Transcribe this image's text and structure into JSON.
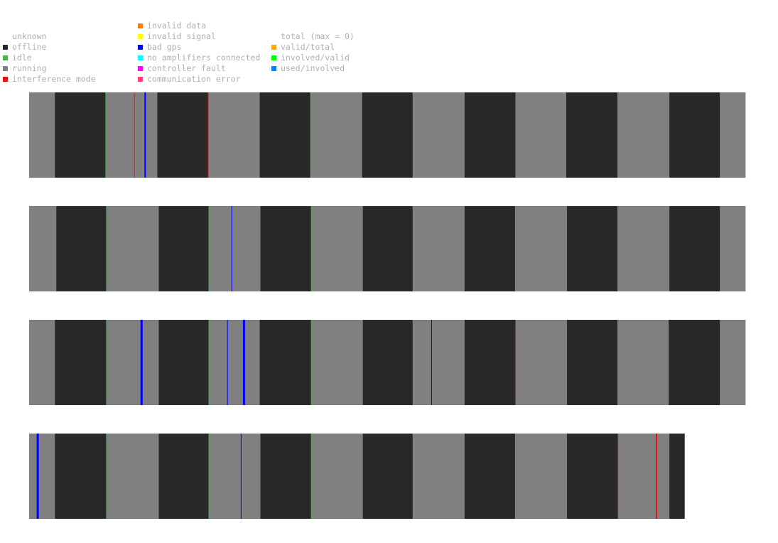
{
  "colors": {
    "unknown": "#ffffff",
    "offline": "#282828",
    "idle": "#4caf50",
    "running": "#808080",
    "interference_mode": "#e81010",
    "invalid_data": "#ff7f00",
    "invalid_signal": "#ffff00",
    "bad_gps": "#0000ff",
    "no_amplifiers_connected": "#00ffff",
    "controller_fault": "#ff00ff",
    "communication_error": "#ff4080",
    "valid_total": "#ffaa00",
    "involved_valid": "#00ff00",
    "used_involved": "#0080ff",
    "legend_text": "#b0b0b0"
  },
  "legend": {
    "col1": [
      {
        "key": "unknown",
        "label": "unknown",
        "swatch": false
      },
      {
        "key": "offline",
        "label": "offline",
        "swatch": true
      },
      {
        "key": "idle",
        "label": "idle",
        "swatch": true
      },
      {
        "key": "running",
        "label": "running",
        "swatch": true
      },
      {
        "key": "interference_mode",
        "label": "interference mode",
        "swatch": true
      }
    ],
    "col2": [
      {
        "key": "invalid_data",
        "label": "invalid data",
        "swatch": true
      },
      {
        "key": "invalid_signal",
        "label": "invalid signal",
        "swatch": true
      },
      {
        "key": "bad_gps",
        "label": "bad gps",
        "swatch": true
      },
      {
        "key": "no_amplifiers_connected",
        "label": "no amplifiers connected",
        "swatch": true
      },
      {
        "key": "controller_fault",
        "label": "controller fault",
        "swatch": true
      },
      {
        "key": "communication_error",
        "label": "communication error",
        "swatch": true
      }
    ],
    "col3": [
      {
        "key": "total",
        "label": "total (max = 0)",
        "swatch": false
      },
      {
        "key": "valid_total",
        "label": "valid/total",
        "swatch": true
      },
      {
        "key": "involved_valid",
        "label": "involved/valid",
        "swatch": true
      },
      {
        "key": "used_involved",
        "label": "used/involved",
        "swatch": true
      }
    ]
  },
  "chart_data": {
    "type": "timeline",
    "x_range": [
      0,
      1000
    ],
    "rows": [
      {
        "segments": [
          [
            0,
            36,
            "running"
          ],
          [
            36,
            107,
            "offline"
          ],
          [
            107,
            179,
            "running"
          ],
          [
            179,
            250,
            "offline"
          ],
          [
            250,
            322,
            "running"
          ],
          [
            322,
            393,
            "offline"
          ],
          [
            393,
            465,
            "running"
          ],
          [
            465,
            536,
            "offline"
          ],
          [
            536,
            608,
            "running"
          ],
          [
            608,
            679,
            "offline"
          ],
          [
            679,
            750,
            "running"
          ],
          [
            750,
            822,
            "offline"
          ],
          [
            822,
            894,
            "running"
          ],
          [
            894,
            965,
            "offline"
          ],
          [
            965,
            1000,
            "running"
          ]
        ],
        "idle_marks": [
          107,
          393,
          536,
          822,
          965
        ],
        "events": [
          [
            147,
            "interference_mode",
            1
          ],
          [
            162,
            "bad_gps",
            2
          ],
          [
            250,
            "interference_mode",
            1
          ]
        ]
      },
      {
        "segments": [
          [
            0,
            38,
            "running"
          ],
          [
            38,
            108,
            "offline"
          ],
          [
            108,
            181,
            "running"
          ],
          [
            181,
            251,
            "offline"
          ],
          [
            251,
            323,
            "running"
          ],
          [
            323,
            394,
            "offline"
          ],
          [
            394,
            466,
            "running"
          ],
          [
            466,
            536,
            "offline"
          ],
          [
            536,
            608,
            "running"
          ],
          [
            608,
            679,
            "offline"
          ],
          [
            679,
            751,
            "running"
          ],
          [
            751,
            822,
            "offline"
          ],
          [
            822,
            894,
            "running"
          ],
          [
            894,
            965,
            "offline"
          ],
          [
            965,
            1000,
            "running"
          ]
        ],
        "idle_marks": [
          108,
          251,
          394,
          536,
          679,
          822,
          965
        ],
        "events": [
          [
            283,
            "bad_gps",
            1
          ]
        ]
      },
      {
        "segments": [
          [
            0,
            36,
            "running"
          ],
          [
            36,
            108,
            "offline"
          ],
          [
            108,
            181,
            "running"
          ],
          [
            181,
            251,
            "offline"
          ],
          [
            251,
            322,
            "running"
          ],
          [
            322,
            394,
            "offline"
          ],
          [
            394,
            466,
            "running"
          ],
          [
            466,
            536,
            "offline"
          ],
          [
            536,
            608,
            "running"
          ],
          [
            608,
            679,
            "offline"
          ],
          [
            679,
            751,
            "running"
          ],
          [
            751,
            822,
            "offline"
          ],
          [
            822,
            893,
            "running"
          ],
          [
            893,
            965,
            "offline"
          ],
          [
            965,
            1000,
            "running"
          ]
        ],
        "idle_marks": [
          108,
          251,
          394,
          536,
          822,
          965
        ],
        "events": [
          [
            157,
            "bad_gps",
            3
          ],
          [
            277,
            "bad_gps",
            1
          ],
          [
            300,
            "bad_gps",
            3
          ],
          [
            562,
            "bad_gps",
            1
          ],
          [
            679,
            "interference_mode",
            1
          ]
        ]
      },
      {
        "segments": [
          [
            0,
            36,
            "running"
          ],
          [
            36,
            108,
            "offline"
          ],
          [
            108,
            181,
            "running"
          ],
          [
            181,
            251,
            "offline"
          ],
          [
            251,
            323,
            "running"
          ],
          [
            323,
            394,
            "offline"
          ],
          [
            394,
            466,
            "running"
          ],
          [
            466,
            536,
            "offline"
          ],
          [
            536,
            608,
            "running"
          ],
          [
            608,
            679,
            "offline"
          ],
          [
            679,
            751,
            "running"
          ],
          [
            751,
            822,
            "offline"
          ],
          [
            822,
            894,
            "running"
          ],
          [
            894,
            915,
            "offline"
          ]
        ],
        "idle_marks": [
          108,
          251,
          394,
          536,
          679
        ],
        "events": [
          [
            12,
            "bad_gps",
            3
          ],
          [
            296,
            "bad_gps",
            1
          ],
          [
            822,
            "interference_mode",
            1
          ],
          [
            876,
            "interference_mode",
            2
          ]
        ]
      }
    ]
  }
}
